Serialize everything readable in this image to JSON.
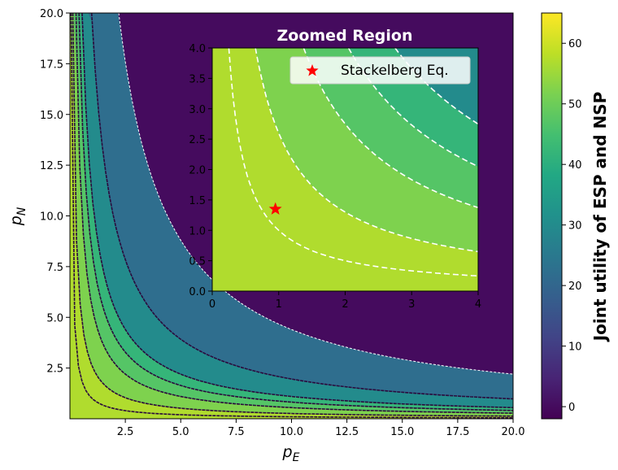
{
  "chart_data": [
    {
      "type": "heatmap",
      "title": "",
      "xlabel": "p_E",
      "ylabel": "p_N",
      "xlim": [
        0,
        20
      ],
      "ylim": [
        0,
        20
      ],
      "x_ticks": [
        2.5,
        5.0,
        7.5,
        10.0,
        12.5,
        15.0,
        17.5,
        20.0
      ],
      "x_tick_labels": [
        "2.5",
        "5.0",
        "7.5",
        "10.0",
        "12.5",
        "15.0",
        "17.5",
        "20.0"
      ],
      "y_ticks": [
        2.5,
        5.0,
        7.5,
        10.0,
        12.5,
        15.0,
        17.5,
        20.0
      ],
      "y_tick_labels": [
        "2.5",
        "5.0",
        "7.5",
        "10.0",
        "12.5",
        "15.0",
        "17.5",
        "20.0"
      ],
      "colormap": "viridis",
      "regions_pE_times_pN": [
        {
          "product_min": 0,
          "product_max": 2.6,
          "joint_utility": 57
        },
        {
          "product_min": 2.6,
          "product_max": 5.5,
          "joint_utility": 52
        },
        {
          "product_min": 5.5,
          "product_max": 8.2,
          "joint_utility": 47
        },
        {
          "product_min": 8.2,
          "product_max": 11.0,
          "joint_utility": 42
        },
        {
          "product_min": 11.0,
          "product_max": 19.6,
          "joint_utility": 30
        },
        {
          "product_min": 19.6,
          "product_max": 44.0,
          "joint_utility": 22
        },
        {
          "product_min": 44.0,
          "product_max": 400,
          "joint_utility": 0
        }
      ],
      "dashed_boundaries_pE_times_pN": [
        1.0,
        2.6,
        5.5,
        8.2,
        11.0,
        19.6,
        44.0
      ]
    },
    {
      "type": "heatmap",
      "title": "Zoomed Region",
      "xlim": [
        0,
        4
      ],
      "ylim": [
        0,
        4
      ],
      "x_ticks": [
        0,
        1,
        2,
        3,
        4
      ],
      "x_tick_labels": [
        "0",
        "1",
        "2",
        "3",
        "4"
      ],
      "y_ticks": [
        0.0,
        0.5,
        1.0,
        1.5,
        2.0,
        2.5,
        3.0,
        3.5,
        4.0
      ],
      "y_tick_labels": [
        "0.0",
        "0.5",
        "1.0",
        "1.5",
        "2.0",
        "2.5",
        "3.0",
        "3.5",
        "4.0"
      ],
      "legend": {
        "entries": [
          "Stackelberg Eq."
        ],
        "placement": "top-right"
      },
      "stackelberg_point": {
        "pE": 0.95,
        "pN": 1.35,
        "marker_color": "#ff0000"
      }
    },
    {
      "type": "colorbar",
      "label": "Joint utility of ESP and NSP",
      "range": [
        -2,
        65
      ],
      "ticks": [
        0,
        10,
        20,
        30,
        40,
        50,
        60
      ],
      "tick_labels": [
        "0",
        "10",
        "20",
        "30",
        "40",
        "50",
        "60"
      ]
    }
  ],
  "text": {
    "main_xlabel_base": "p",
    "main_xlabel_sub": "E",
    "main_ylabel_base": "p",
    "main_ylabel_sub": "N",
    "inset_title": "Zoomed Region",
    "legend_label": "Stackelberg Eq.",
    "colorbar_label": "Joint utility of ESP and NSP"
  }
}
